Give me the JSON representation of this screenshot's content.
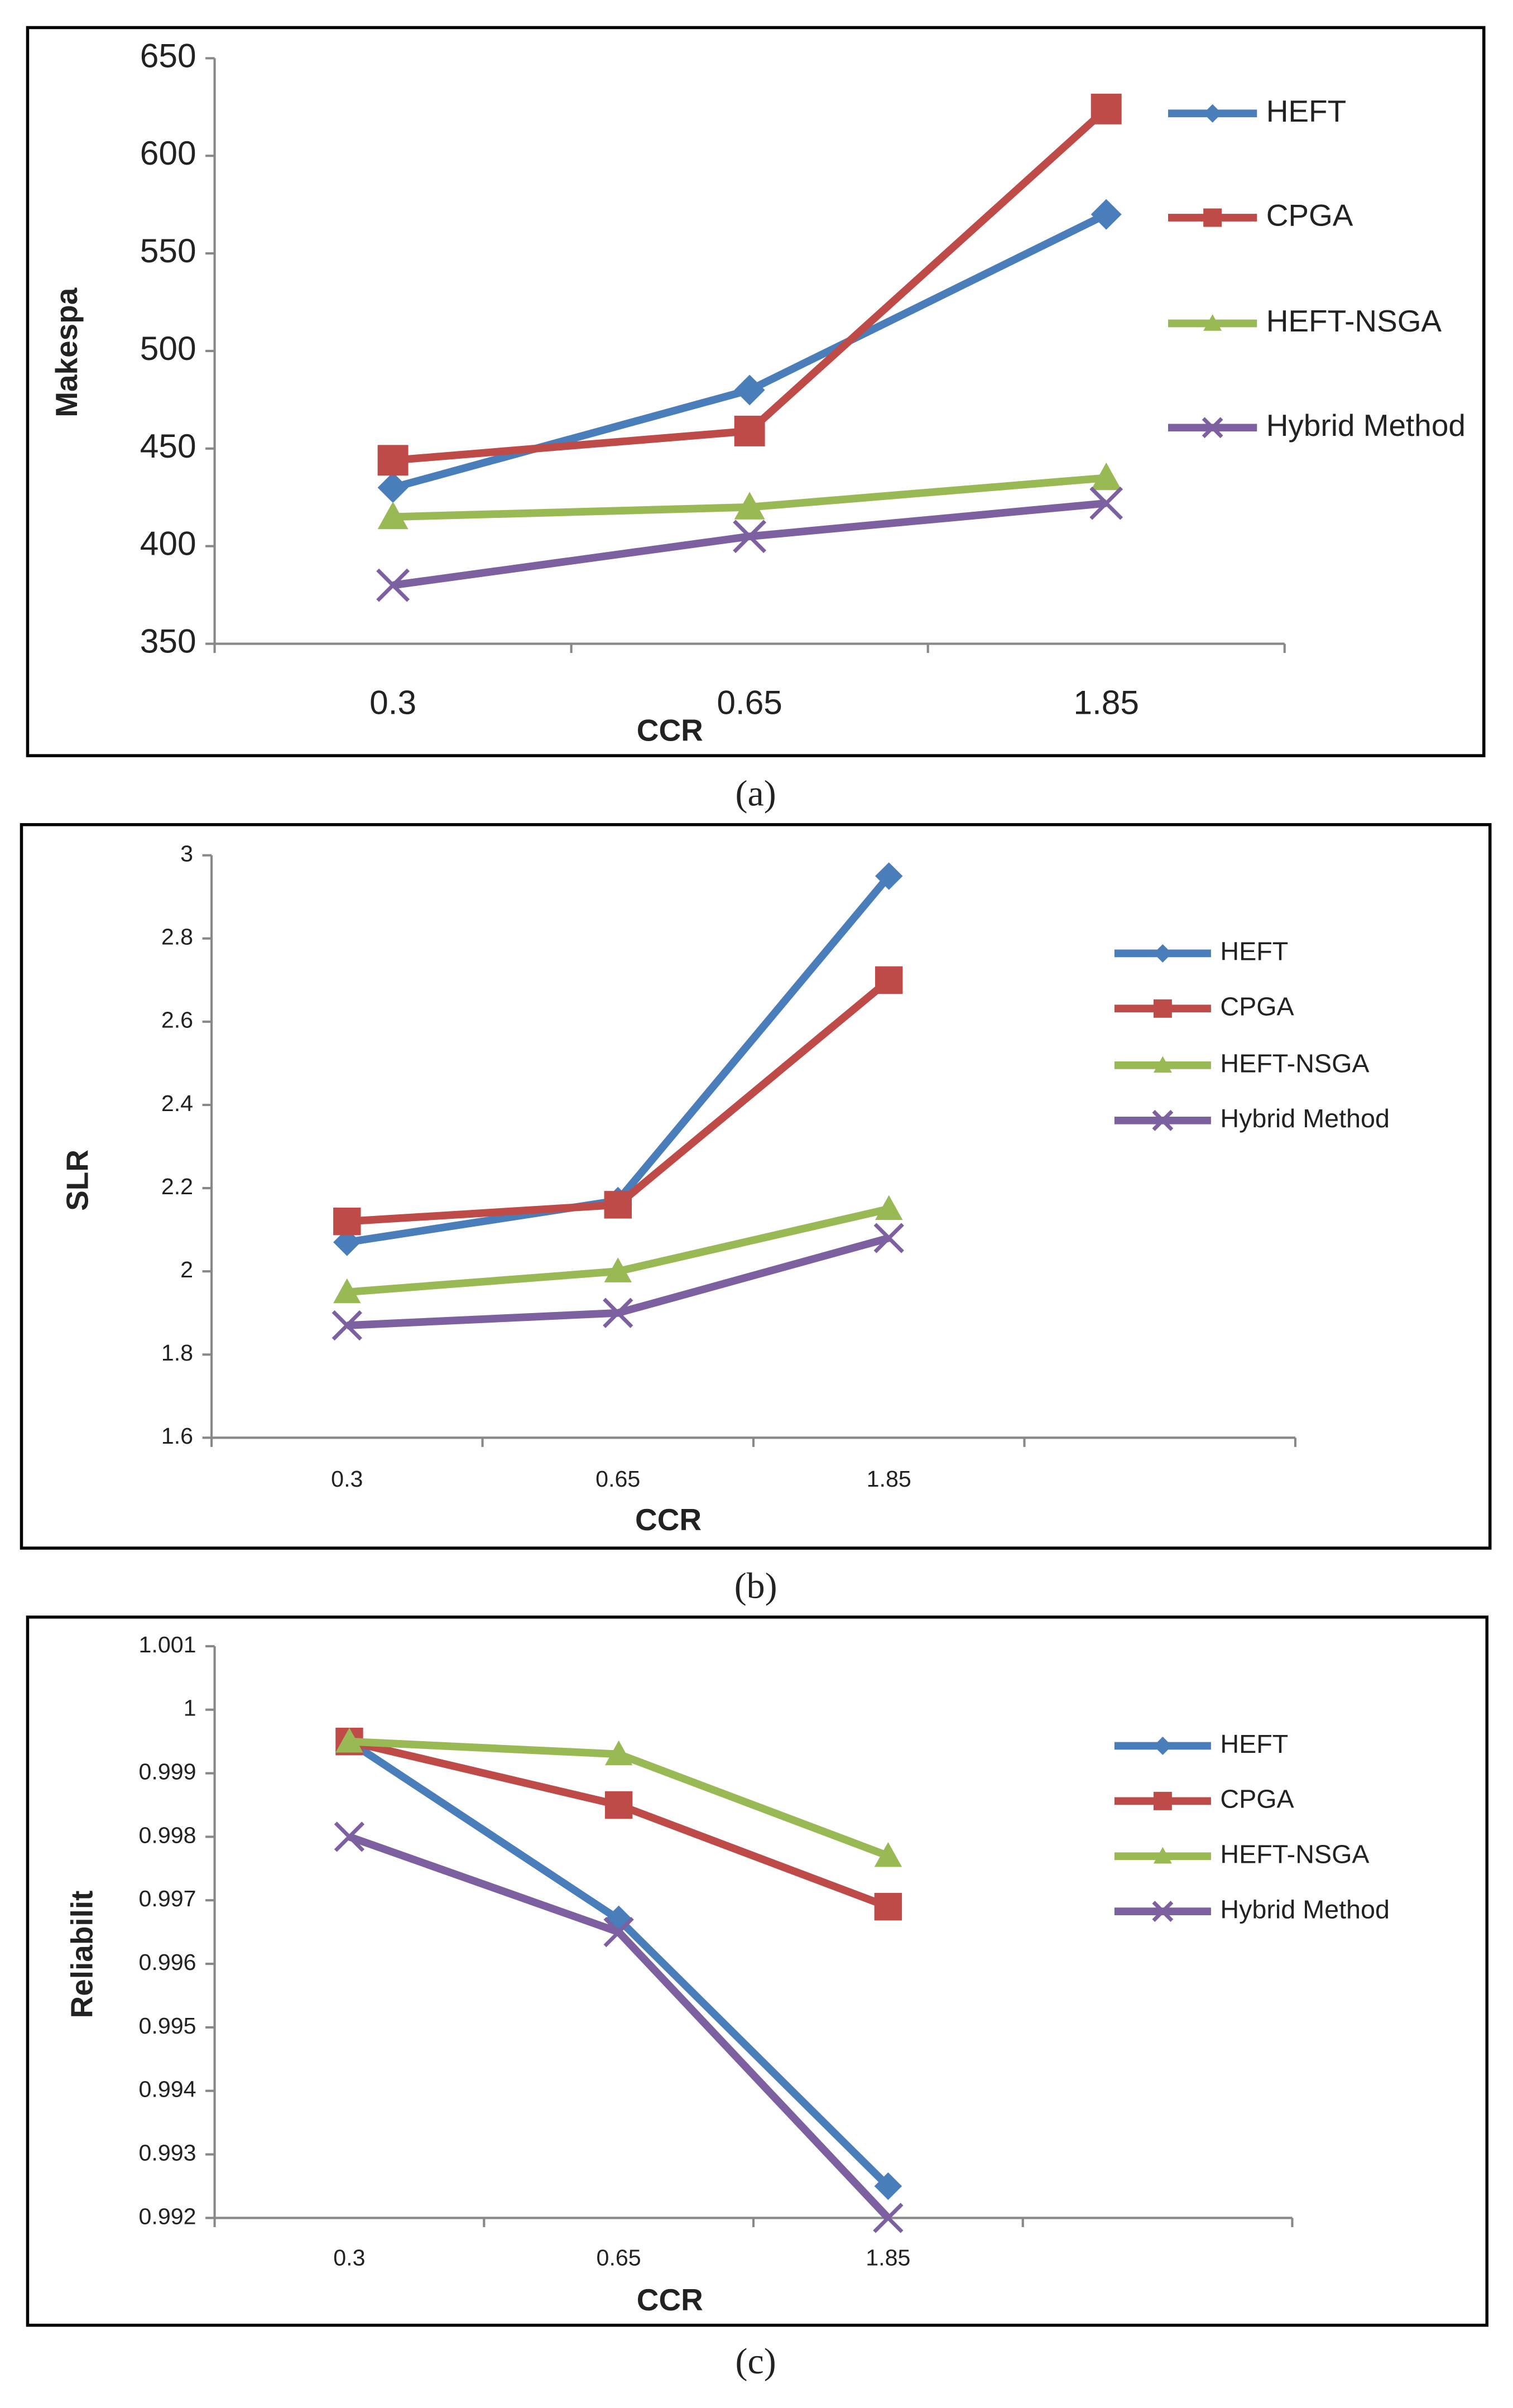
{
  "chart_data": [
    {
      "type": "line",
      "caption": "(a)",
      "x_label": "CCR",
      "y_label": "Makespa",
      "categories": [
        "0.3",
        "0.65",
        "1.85"
      ],
      "ylim": [
        350,
        650
      ],
      "yticks": [
        350,
        400,
        450,
        500,
        550,
        600,
        650
      ],
      "legend": "right",
      "series": [
        {
          "name": "HEFT",
          "color": "#4a7ebb",
          "marker": "diamond",
          "values": [
            430,
            480,
            570
          ]
        },
        {
          "name": "CPGA",
          "color": "#be4b48",
          "marker": "square",
          "values": [
            444,
            459,
            624
          ]
        },
        {
          "name": "HEFT-NSGA",
          "color": "#98b954",
          "marker": "triangle",
          "values": [
            415,
            420,
            435
          ]
        },
        {
          "name": "Hybrid Method",
          "color": "#7d60a0",
          "marker": "x",
          "values": [
            380,
            405,
            422
          ]
        }
      ]
    },
    {
      "type": "line",
      "caption": "(b)",
      "x_label": "CCR",
      "y_label": "SLR",
      "categories": [
        "0.3",
        "0.65",
        "1.85",
        null
      ],
      "ylim": [
        1.6,
        3
      ],
      "yticks": [
        1.6,
        1.8,
        2,
        2.2,
        2.4,
        2.6,
        2.8,
        3
      ],
      "legend": "right",
      "series": [
        {
          "name": "HEFT",
          "color": "#4a7ebb",
          "marker": "diamond",
          "values": [
            2.07,
            2.17,
            2.95,
            null
          ]
        },
        {
          "name": "CPGA",
          "color": "#be4b48",
          "marker": "square",
          "values": [
            2.12,
            2.16,
            2.7,
            null
          ]
        },
        {
          "name": "HEFT-NSGA",
          "color": "#98b954",
          "marker": "triangle",
          "values": [
            1.95,
            2.0,
            2.15,
            null
          ]
        },
        {
          "name": "Hybrid Method",
          "color": "#7d60a0",
          "marker": "x",
          "values": [
            1.87,
            1.9,
            2.08,
            null
          ]
        }
      ]
    },
    {
      "type": "line",
      "caption": "(c)",
      "x_label": "CCR",
      "y_label": "Reliabilit",
      "categories": [
        "0.3",
        "0.65",
        "1.85",
        null
      ],
      "ylim": [
        0.992,
        1.001
      ],
      "yticks": [
        0.992,
        0.993,
        0.994,
        0.995,
        0.996,
        0.997,
        0.998,
        0.999,
        1,
        1.001
      ],
      "legend": "right",
      "series": [
        {
          "name": "HEFT",
          "color": "#4a7ebb",
          "marker": "diamond",
          "values": [
            0.9995,
            0.9967,
            0.9925,
            null
          ]
        },
        {
          "name": "CPGA",
          "color": "#be4b48",
          "marker": "square",
          "values": [
            0.9995,
            0.9985,
            0.9969,
            null
          ]
        },
        {
          "name": "HEFT-NSGA",
          "color": "#98b954",
          "marker": "triangle",
          "values": [
            0.9995,
            0.9993,
            0.9977,
            null
          ]
        },
        {
          "name": "Hybrid Method",
          "color": "#7d60a0",
          "marker": "x",
          "values": [
            0.998,
            0.9965,
            0.992,
            null
          ]
        }
      ]
    }
  ]
}
